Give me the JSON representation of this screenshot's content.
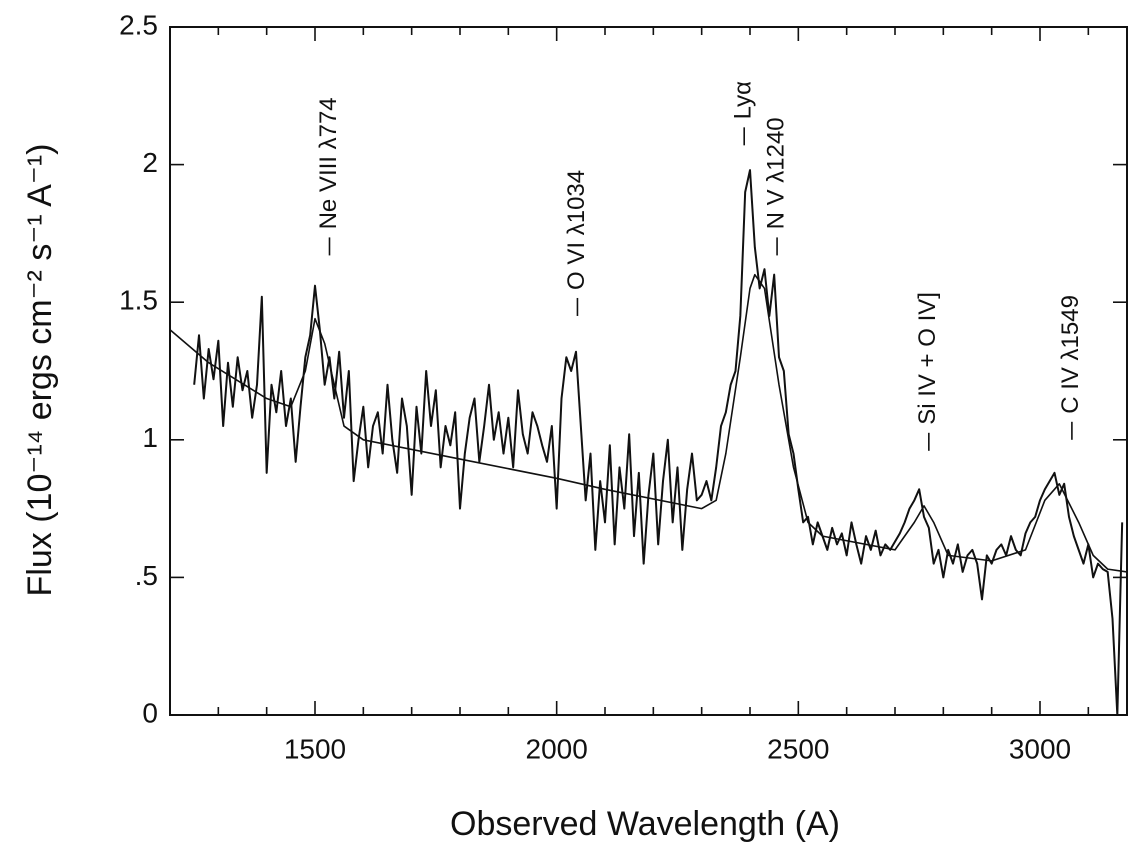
{
  "chart_data": {
    "type": "line",
    "xlabel": "Observed Wavelength (A)",
    "ylabel": "Flux  (10⁻¹⁴ ergs cm⁻² s⁻¹ A⁻¹)",
    "xlim": [
      1200,
      3180
    ],
    "ylim": [
      0,
      2.5
    ],
    "xticks": [
      1500,
      2000,
      2500,
      3000
    ],
    "xminorticks": [
      1300,
      1400,
      1600,
      1700,
      1800,
      1900,
      2100,
      2200,
      2300,
      2400,
      2600,
      2700,
      2800,
      2900,
      3100
    ],
    "yticks": [
      0,
      {
        "value": 0.5,
        "label": ".5"
      },
      1,
      1.5,
      2,
      2.5
    ],
    "grid": false,
    "series": [
      {
        "color": "#111111",
        "x": [
          1250,
          1260,
          1270,
          1280,
          1290,
          1300,
          1310,
          1320,
          1330,
          1340,
          1350,
          1360,
          1370,
          1380,
          1390,
          1400,
          1410,
          1420,
          1430,
          1440,
          1450,
          1460,
          1470,
          1480,
          1490,
          1500,
          1510,
          1520,
          1530,
          1540,
          1550,
          1560,
          1570,
          1580,
          1590,
          1600,
          1610,
          1620,
          1630,
          1640,
          1650,
          1660,
          1670,
          1680,
          1690,
          1700,
          1710,
          1720,
          1730,
          1740,
          1750,
          1760,
          1770,
          1780,
          1790,
          1800,
          1810,
          1820,
          1830,
          1840,
          1850,
          1860,
          1870,
          1880,
          1890,
          1900,
          1910,
          1920,
          1930,
          1940,
          1950,
          1960,
          1970,
          1980,
          1990,
          2000,
          2010,
          2020,
          2030,
          2040,
          2050,
          2060,
          2070,
          2080,
          2090,
          2100,
          2110,
          2120,
          2130,
          2140,
          2150,
          2160,
          2170,
          2180,
          2190,
          2200,
          2210,
          2220,
          2230,
          2240,
          2250,
          2260,
          2270,
          2280,
          2290,
          2300,
          2310,
          2320,
          2330,
          2340,
          2350,
          2360,
          2370,
          2380,
          2390,
          2400,
          2410,
          2420,
          2430,
          2440,
          2450,
          2460,
          2470,
          2480,
          2490,
          2500,
          2510,
          2520,
          2530,
          2540,
          2550,
          2560,
          2570,
          2580,
          2590,
          2600,
          2610,
          2620,
          2630,
          2640,
          2650,
          2660,
          2670,
          2680,
          2690,
          2700,
          2710,
          2720,
          2730,
          2740,
          2750,
          2760,
          2770,
          2780,
          2790,
          2800,
          2810,
          2820,
          2830,
          2840,
          2850,
          2860,
          2870,
          2880,
          2890,
          2900,
          2910,
          2920,
          2930,
          2940,
          2950,
          2960,
          2970,
          2980,
          2990,
          3000,
          3010,
          3020,
          3030,
          3040,
          3050,
          3060,
          3070,
          3080,
          3090,
          3100,
          3110,
          3120,
          3130,
          3140,
          3150,
          3160,
          3170
        ],
        "values": [
          1.2,
          1.38,
          1.15,
          1.33,
          1.22,
          1.36,
          1.05,
          1.28,
          1.12,
          1.3,
          1.18,
          1.25,
          1.08,
          1.2,
          1.52,
          0.88,
          1.2,
          1.1,
          1.25,
          1.05,
          1.15,
          0.92,
          1.12,
          1.3,
          1.38,
          1.56,
          1.4,
          1.2,
          1.3,
          1.15,
          1.32,
          1.08,
          1.25,
          0.85,
          1.0,
          1.12,
          0.9,
          1.05,
          1.1,
          0.95,
          1.2,
          1.0,
          0.88,
          1.15,
          1.05,
          0.8,
          1.12,
          0.95,
          1.25,
          1.05,
          1.18,
          0.9,
          1.05,
          0.98,
          1.1,
          0.75,
          0.95,
          1.08,
          1.15,
          0.92,
          1.05,
          1.2,
          1.0,
          1.1,
          0.95,
          1.08,
          0.9,
          1.18,
          1.02,
          0.95,
          1.1,
          1.05,
          0.98,
          0.92,
          1.05,
          0.75,
          1.15,
          1.3,
          1.25,
          1.32,
          1.05,
          0.78,
          0.95,
          0.6,
          0.85,
          0.7,
          0.98,
          0.62,
          0.9,
          0.75,
          1.02,
          0.65,
          0.88,
          0.55,
          0.8,
          0.95,
          0.62,
          0.85,
          1.0,
          0.7,
          0.9,
          0.6,
          0.82,
          0.95,
          0.78,
          0.8,
          0.85,
          0.78,
          0.9,
          1.05,
          1.1,
          1.2,
          1.25,
          1.45,
          1.9,
          1.98,
          1.7,
          1.55,
          1.62,
          1.45,
          1.6,
          1.3,
          1.25,
          1.02,
          0.95,
          0.82,
          0.7,
          0.72,
          0.62,
          0.7,
          0.65,
          0.6,
          0.68,
          0.62,
          0.66,
          0.58,
          0.7,
          0.62,
          0.55,
          0.65,
          0.6,
          0.67,
          0.58,
          0.62,
          0.6,
          0.63,
          0.66,
          0.7,
          0.75,
          0.78,
          0.82,
          0.72,
          0.68,
          0.55,
          0.6,
          0.5,
          0.6,
          0.55,
          0.62,
          0.52,
          0.58,
          0.6,
          0.55,
          0.42,
          0.58,
          0.55,
          0.6,
          0.62,
          0.58,
          0.65,
          0.6,
          0.58,
          0.66,
          0.7,
          0.72,
          0.78,
          0.82,
          0.85,
          0.88,
          0.8,
          0.84,
          0.72,
          0.65,
          0.6,
          0.55,
          0.62,
          0.5,
          0.55,
          0.53,
          0.52,
          0.35,
          0,
          0.7
        ]
      },
      {
        "color": "#111111",
        "x": [
          1200,
          1280,
          1400,
          1450,
          1480,
          1500,
          1520,
          1560,
          1600,
          1800,
          2000,
          2100,
          2300,
          2330,
          2350,
          2380,
          2400,
          2410,
          2430,
          2460,
          2490,
          2520,
          2550,
          2700,
          2740,
          2760,
          2780,
          2810,
          2900,
          2970,
          3010,
          3040,
          3080,
          3110,
          3140,
          3180
        ],
        "values": [
          1.4,
          1.28,
          1.15,
          1.12,
          1.25,
          1.44,
          1.35,
          1.05,
          1.0,
          0.93,
          0.86,
          0.82,
          0.75,
          0.78,
          0.95,
          1.3,
          1.55,
          1.6,
          1.55,
          1.2,
          0.9,
          0.7,
          0.65,
          0.6,
          0.7,
          0.76,
          0.7,
          0.58,
          0.56,
          0.6,
          0.78,
          0.84,
          0.7,
          0.58,
          0.53,
          0.52
        ]
      }
    ],
    "annotations": [
      {
        "text": "Ne VIII λ774",
        "x": 1530,
        "y": 1.67
      },
      {
        "text": "O VI λ1034",
        "x": 2043,
        "y": 1.45
      },
      {
        "text": "Lyα",
        "x": 2388,
        "y": 2.07
      },
      {
        "text": "N V λ1240",
        "x": 2456,
        "y": 1.67
      },
      {
        "text": "Si IV + O IV]",
        "x": 2770,
        "y": 0.96
      },
      {
        "text": "C IV λ1549",
        "x": 3066,
        "y": 1.0
      }
    ]
  }
}
